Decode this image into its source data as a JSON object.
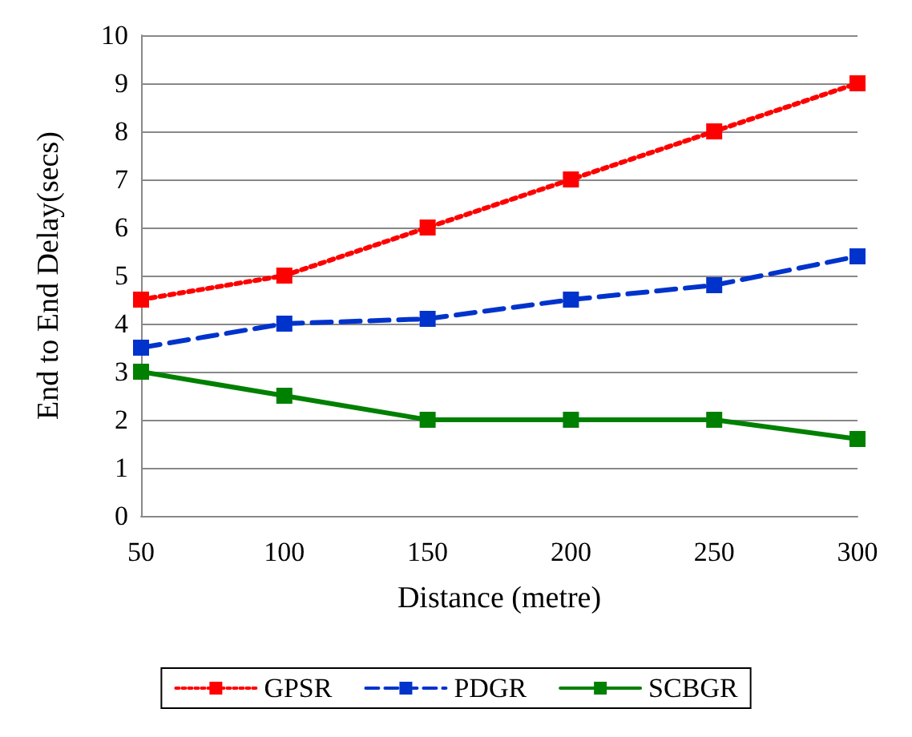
{
  "chart_data": {
    "type": "line",
    "xlabel": "Distance (metre)",
    "ylabel": "End to End Delay(secs)",
    "categories": [
      "50",
      "100",
      "150",
      "200",
      "250",
      "300"
    ],
    "series": [
      {
        "name": "GPSR",
        "color": "#ff0000",
        "line_style": "dotted",
        "values": [
          4.5,
          5,
          6,
          7,
          8,
          9
        ]
      },
      {
        "name": "PDGR",
        "color": "#0033cc",
        "line_style": "dashed",
        "values": [
          3.5,
          4,
          4.1,
          4.5,
          4.8,
          5.4
        ]
      },
      {
        "name": "SCBGR",
        "color": "#008000",
        "line_style": "solid",
        "values": [
          3,
          2.5,
          2,
          2,
          2,
          1.6
        ]
      }
    ],
    "ylim": [
      0,
      10
    ],
    "yticks": [
      0,
      1,
      2,
      3,
      4,
      5,
      6,
      7,
      8,
      9,
      10
    ],
    "grid": "y",
    "legend": "bottom",
    "marker": "square"
  }
}
